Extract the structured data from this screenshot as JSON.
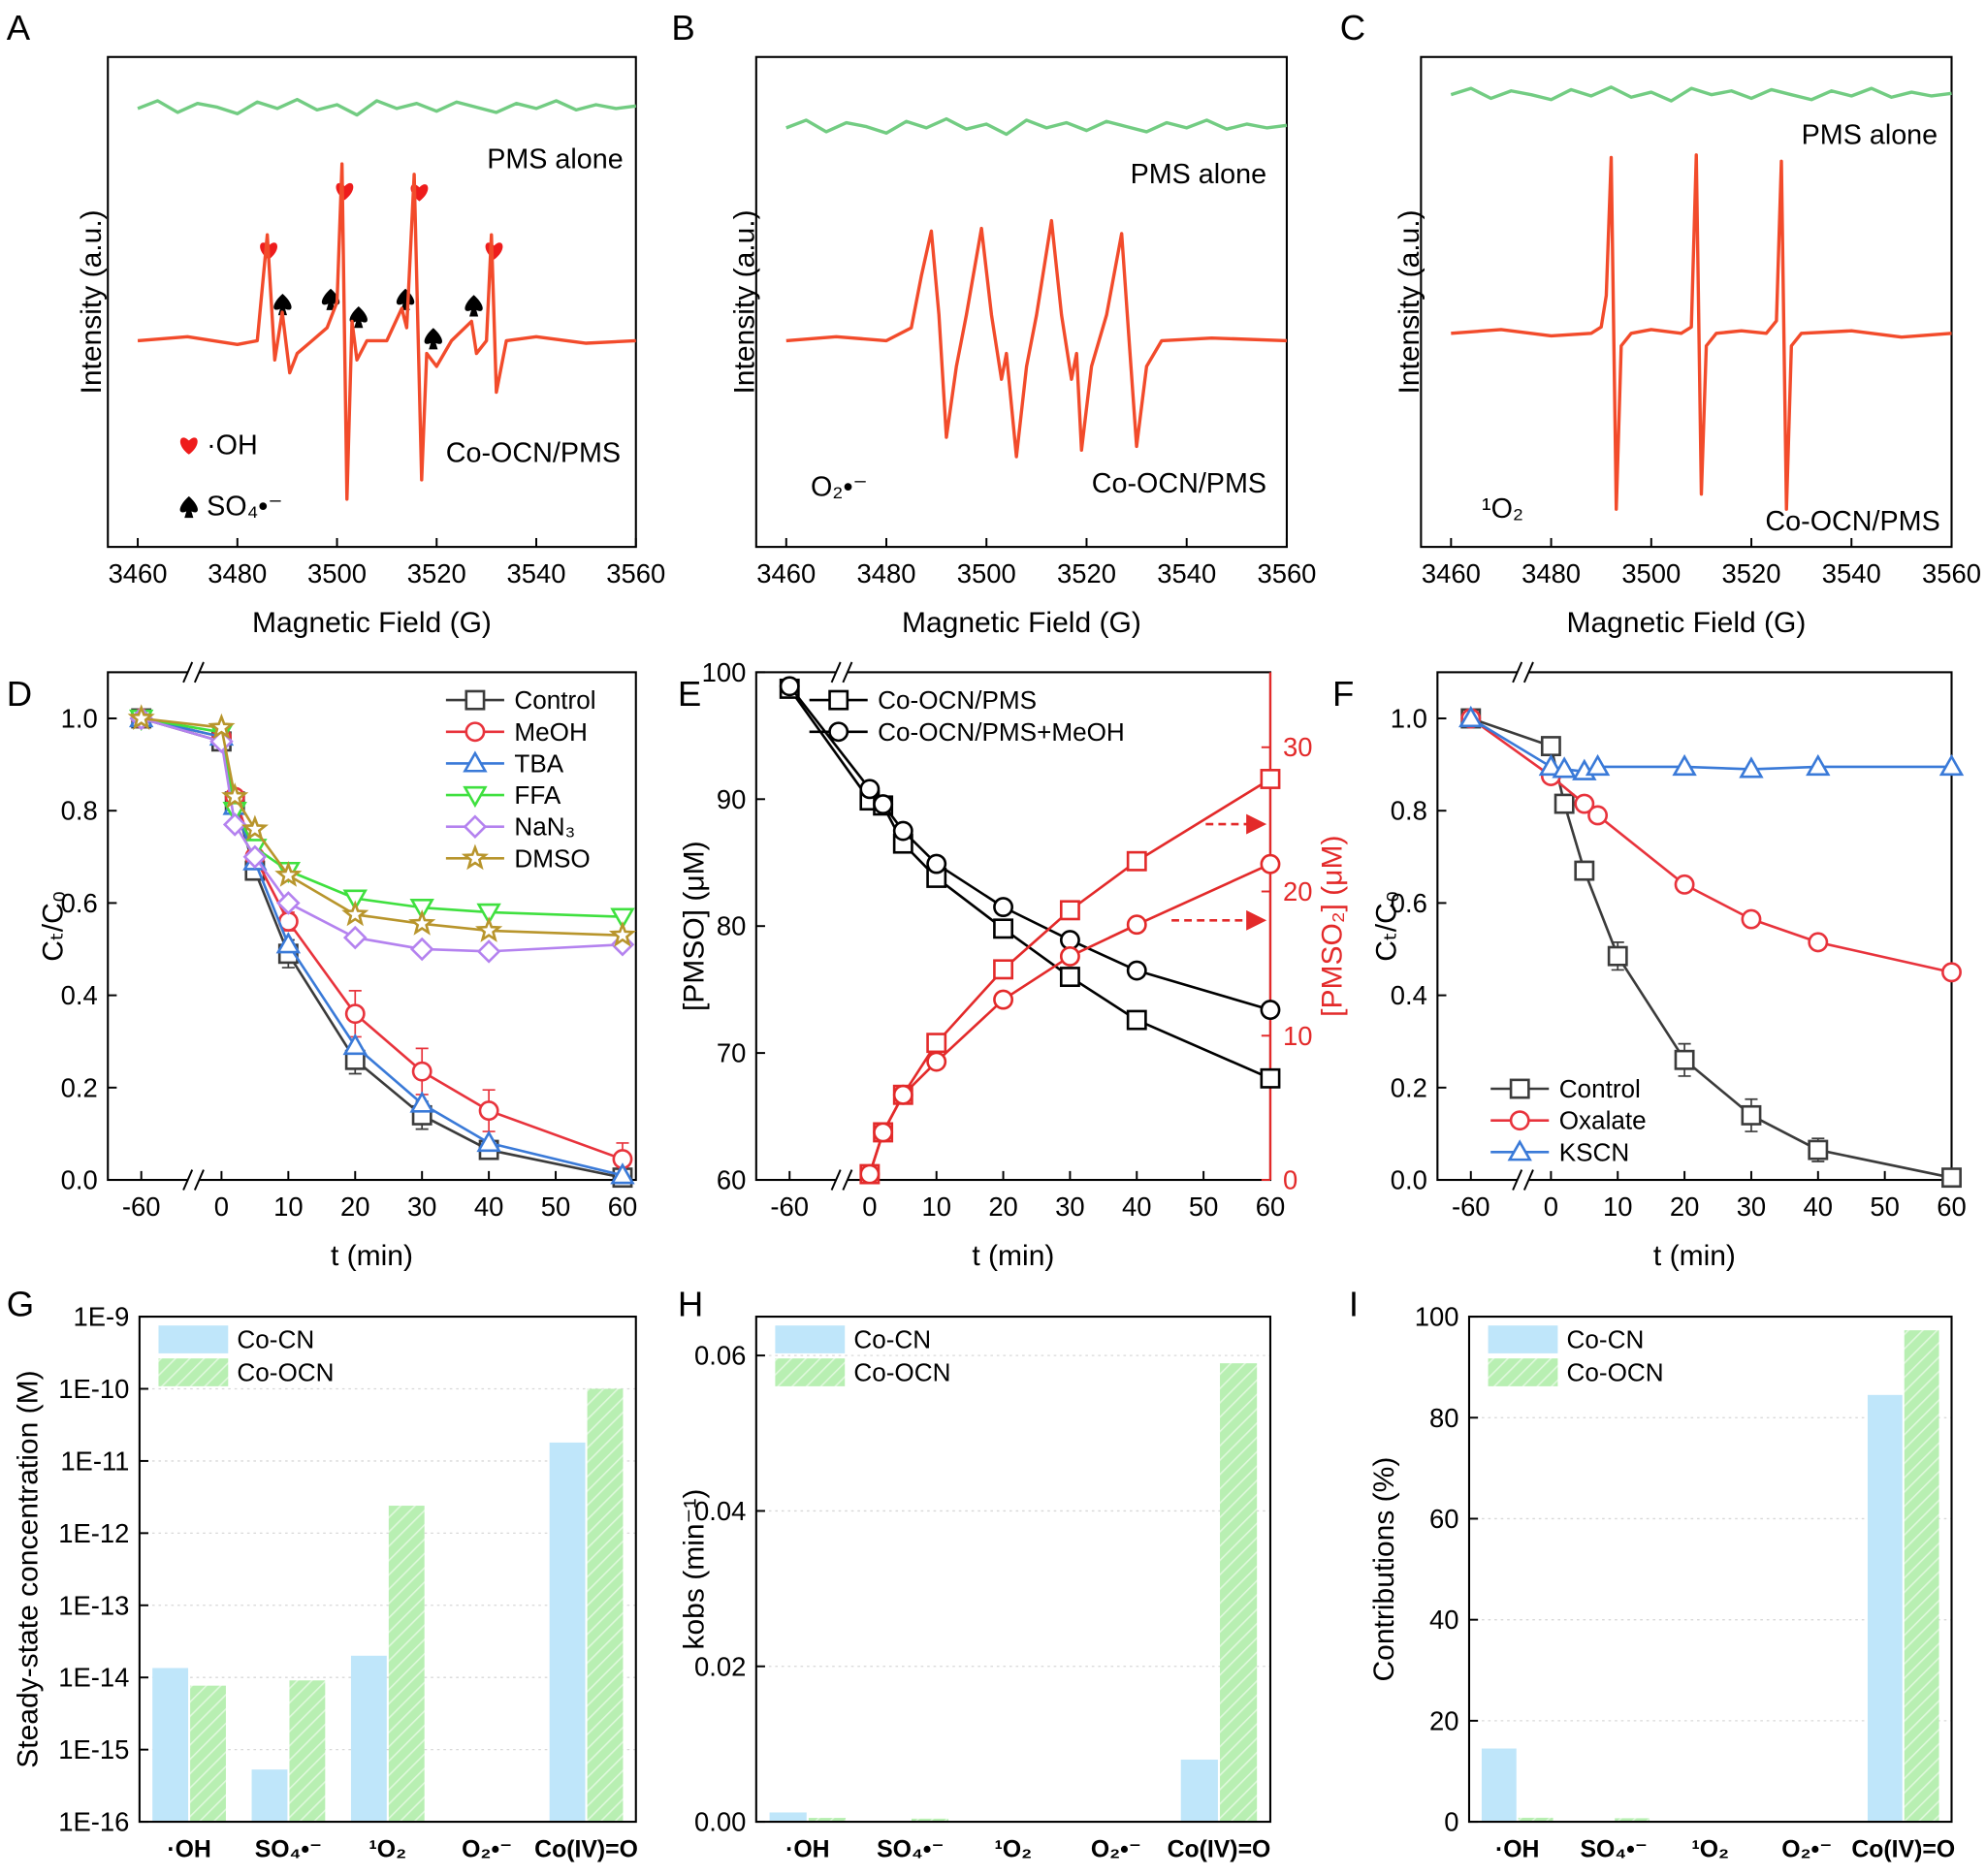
{
  "chart_data": [
    {
      "type": "line",
      "panel_label": "A",
      "xlabel": "Magnetic Field (G)",
      "ylabel": "Intensity (a.u.)",
      "xlim": [
        3454,
        3560
      ],
      "xticks": [
        3460,
        3480,
        3500,
        3520,
        3540,
        3560
      ],
      "ylim": [
        -16,
        22
      ],
      "annotations": [
        "PMS alone",
        "Co-OCN/PMS",
        "·OH",
        "SO₄•⁻"
      ],
      "series": [
        {
          "color": "#72cc82",
          "x": [
            3460,
            3464,
            3468,
            3472,
            3476,
            3480,
            3484,
            3488,
            3492,
            3496,
            3500,
            3504,
            3508,
            3512,
            3516,
            3520,
            3524,
            3528,
            3532,
            3536,
            3540,
            3544,
            3548,
            3552,
            3556,
            3560
          ],
          "values": [
            18.0,
            18.6,
            17.7,
            18.4,
            18.1,
            17.6,
            18.5,
            18.0,
            18.7,
            17.9,
            18.3,
            17.5,
            18.6,
            18.0,
            18.4,
            17.8,
            18.5,
            18.1,
            17.7,
            18.4,
            18.0,
            18.6,
            17.9,
            18.3,
            18.0,
            18.2
          ]
        },
        {
          "color": "#f24b2b",
          "x": [
            3460,
            3470,
            3480,
            3484,
            3486,
            3487.5,
            3489,
            3490.5,
            3492,
            3495,
            3498,
            3500,
            3501,
            3502,
            3503,
            3504,
            3506,
            3510,
            3513,
            3514,
            3515.5,
            3517,
            3518,
            3520,
            3523,
            3527,
            3528,
            3530,
            3531,
            3532,
            3534,
            3540,
            3550,
            3560
          ],
          "values": [
            0,
            0.3,
            -0.3,
            0,
            8.2,
            -1.5,
            2.2,
            -2.5,
            -1,
            0,
            1,
            3,
            13.7,
            -12.3,
            1.5,
            -1.5,
            0,
            0,
            2.5,
            1,
            12.9,
            -10.8,
            -1,
            -2,
            0,
            1.5,
            -1,
            0,
            8.2,
            -4,
            0,
            0.3,
            -0.2,
            0
          ]
        }
      ]
    },
    {
      "type": "line",
      "panel_label": "B",
      "xlabel": "Magnetic Field (G)",
      "ylabel": "Intensity (a.u.)",
      "xlim": [
        3454,
        3560
      ],
      "xticks": [
        3460,
        3480,
        3500,
        3520,
        3540,
        3560
      ],
      "ylim": [
        -16,
        22
      ],
      "annotations": [
        "PMS alone",
        "Co-OCN/PMS",
        "O₂•⁻"
      ],
      "series": [
        {
          "color": "#72cc82",
          "x": [
            3460,
            3464,
            3468,
            3472,
            3476,
            3480,
            3484,
            3488,
            3492,
            3496,
            3500,
            3504,
            3508,
            3512,
            3516,
            3520,
            3524,
            3528,
            3532,
            3536,
            3540,
            3544,
            3548,
            3552,
            3556,
            3560
          ],
          "values": [
            16.5,
            17.1,
            16.2,
            16.9,
            16.6,
            16.1,
            17.0,
            16.5,
            17.2,
            16.4,
            16.8,
            16.0,
            17.1,
            16.5,
            16.9,
            16.3,
            17.0,
            16.6,
            16.2,
            16.9,
            16.5,
            17.1,
            16.4,
            16.8,
            16.5,
            16.7
          ]
        },
        {
          "color": "#f24b2b",
          "x": [
            3460,
            3470,
            3480,
            3485,
            3487,
            3489,
            3490.5,
            3492,
            3494,
            3496,
            3499,
            3501,
            3503,
            3504,
            3506,
            3508,
            3510,
            3513,
            3515,
            3517,
            3518,
            3519,
            3521,
            3524,
            3527,
            3528.5,
            3530,
            3532,
            3535,
            3545,
            3560
          ],
          "values": [
            0,
            0.3,
            0,
            1,
            5,
            8.5,
            2,
            -7.5,
            -2,
            2,
            8.7,
            2,
            -3,
            -1,
            -9,
            -2,
            2,
            9.3,
            2,
            -3,
            -1,
            -8.5,
            -2,
            2,
            8.3,
            0,
            -8.2,
            -2,
            0,
            0.2,
            0
          ]
        }
      ]
    },
    {
      "type": "line",
      "panel_label": "C",
      "xlabel": "Magnetic Field (G)",
      "ylabel": "Intensity (a.u.)",
      "xlim": [
        3454,
        3560
      ],
      "xticks": [
        3460,
        3480,
        3500,
        3520,
        3540,
        3560
      ],
      "ylim": [
        -17,
        22
      ],
      "annotations": [
        "PMS alone",
        "Co-OCN/PMS",
        "¹O₂"
      ],
      "series": [
        {
          "color": "#72cc82",
          "x": [
            3460,
            3464,
            3468,
            3472,
            3476,
            3480,
            3484,
            3488,
            3492,
            3496,
            3500,
            3504,
            3508,
            3512,
            3516,
            3520,
            3524,
            3528,
            3532,
            3536,
            3540,
            3544,
            3548,
            3552,
            3556,
            3560
          ],
          "values": [
            19.0,
            19.5,
            18.7,
            19.3,
            19.0,
            18.6,
            19.4,
            18.9,
            19.6,
            18.8,
            19.2,
            18.5,
            19.5,
            19.0,
            19.3,
            18.7,
            19.4,
            19.0,
            18.6,
            19.3,
            18.9,
            19.5,
            18.8,
            19.2,
            18.9,
            19.1
          ]
        },
        {
          "color": "#f24b2b",
          "x": [
            3460,
            3470,
            3480,
            3488,
            3490,
            3491,
            3492,
            3493,
            3494,
            3496,
            3500,
            3506,
            3508,
            3509,
            3510,
            3511,
            3513,
            3518,
            3523,
            3525,
            3526,
            3527,
            3528,
            3530,
            3540,
            3550,
            3560
          ],
          "values": [
            0,
            0.3,
            -0.2,
            0,
            0.5,
            3,
            14,
            -14,
            -1,
            0,
            0.3,
            0,
            0.5,
            14.2,
            -12.8,
            -1,
            0,
            0.2,
            0,
            1,
            13.7,
            -14,
            -1,
            0,
            0.2,
            -0.3,
            0
          ]
        }
      ]
    },
    {
      "type": "line",
      "panel_label": "D",
      "xlabel": "t (min)",
      "ylabel": "Cₜ/C₀",
      "x": [
        -60,
        0,
        2,
        5,
        10,
        20,
        30,
        40,
        60
      ],
      "xlim": [
        -65,
        62
      ],
      "x_break": [
        -52,
        -4
      ],
      "xticks": [
        -60,
        0,
        10,
        20,
        30,
        40,
        50,
        60
      ],
      "ylim": [
        0,
        1.1
      ],
      "yticks": [
        {
          "value": 0,
          "label": "0.0"
        },
        0.2,
        0.4,
        0.6,
        0.8,
        {
          "value": 1,
          "label": "1.0"
        }
      ],
      "legend": "upper right",
      "series": [
        {
          "name": "Control",
          "marker": "square",
          "color": "#3b3b3b",
          "values": [
            1.0,
            0.95,
            0.82,
            0.67,
            0.49,
            0.26,
            0.14,
            0.065,
            0.005
          ],
          "errors": [
            0,
            0,
            0,
            0.015,
            0.03,
            0.03,
            0.03,
            0.02,
            0
          ]
        },
        {
          "name": "MeOH",
          "marker": "circle",
          "color": "#e8333c",
          "values": [
            1.0,
            0.96,
            0.83,
            0.7,
            0.56,
            0.36,
            0.235,
            0.15,
            0.045
          ],
          "errors": [
            0,
            0,
            0,
            0,
            0.02,
            0.05,
            0.05,
            0.045,
            0.035
          ]
        },
        {
          "name": "TBA",
          "marker": "triangle",
          "color": "#3a7ad8",
          "values": [
            1.0,
            0.96,
            0.81,
            0.69,
            0.51,
            0.29,
            0.165,
            0.08,
            0.01
          ]
        },
        {
          "name": "FFA",
          "marker": "triangle-down",
          "color": "#3fe03f",
          "values": [
            1.0,
            0.97,
            0.8,
            0.72,
            0.67,
            0.61,
            0.59,
            0.58,
            0.57
          ]
        },
        {
          "name": "NaN₃",
          "marker": "diamond",
          "color": "#b482ef",
          "values": [
            1.0,
            0.95,
            0.77,
            0.7,
            0.6,
            0.525,
            0.5,
            0.495,
            0.51
          ]
        },
        {
          "name": "DMSO",
          "marker": "star",
          "color": "#b8952c",
          "values": [
            1.0,
            0.98,
            0.83,
            0.76,
            0.66,
            0.575,
            0.555,
            0.54,
            0.53
          ]
        }
      ]
    },
    {
      "type": "line",
      "panel_label": "E",
      "xlabel": "t (min)",
      "ylabel": "[PMSO] (μM)",
      "y2label": "[PMSO₂] (μM)",
      "xlim": [
        -65,
        60
      ],
      "x_break": [
        -52,
        -4
      ],
      "xticks": [
        -60,
        0,
        10,
        20,
        30,
        40,
        50,
        60
      ],
      "ylim": [
        60,
        100
      ],
      "yticks": [
        60,
        70,
        80,
        90,
        100
      ],
      "y2lim": [
        0,
        35.2
      ],
      "y2ticks": [
        0,
        10,
        20,
        30
      ],
      "y2color": "#e32a2a",
      "legend": "upper left",
      "series": [
        {
          "name": "Co-OCN/PMS",
          "marker": "square",
          "color": "#000000",
          "x": [
            -60,
            0,
            2,
            5,
            10,
            20,
            30,
            40,
            60
          ],
          "values": [
            98.7,
            89.9,
            89.5,
            86.5,
            83.8,
            79.8,
            76.0,
            72.6,
            68.0
          ]
        },
        {
          "name": "Co-OCN/PMS+MeOH",
          "marker": "circle",
          "color": "#000000",
          "x": [
            -60,
            0,
            2,
            5,
            10,
            20,
            30,
            40,
            60
          ],
          "values": [
            98.9,
            90.8,
            89.6,
            87.5,
            84.9,
            81.5,
            78.9,
            76.5,
            73.4
          ]
        },
        {
          "axis": "y2",
          "marker": "square",
          "color": "#e32a2a",
          "x": [
            0,
            2,
            5,
            10,
            20,
            30,
            40,
            60
          ],
          "values": [
            0.4,
            3.3,
            5.9,
            9.5,
            14.6,
            18.7,
            22.1,
            27.8
          ]
        },
        {
          "axis": "y2",
          "marker": "circle",
          "color": "#e32a2a",
          "x": [
            0,
            2,
            5,
            10,
            20,
            30,
            40,
            60
          ],
          "values": [
            0.4,
            3.3,
            5.9,
            8.2,
            12.5,
            15.5,
            17.7,
            21.9
          ]
        }
      ]
    },
    {
      "type": "line",
      "panel_label": "F",
      "xlabel": "t (min)",
      "ylabel": "Cₜ/C₀",
      "xlim": [
        -65,
        60
      ],
      "x_break": [
        -52,
        -4
      ],
      "xticks": [
        -60,
        0,
        10,
        20,
        30,
        40,
        50,
        60
      ],
      "ylim": [
        0,
        1.1
      ],
      "yticks": [
        {
          "value": 0,
          "label": "0.0"
        },
        0.2,
        0.4,
        0.6,
        0.8,
        {
          "value": 1,
          "label": "1.0"
        }
      ],
      "legend": "lower left",
      "series": [
        {
          "name": "Control",
          "marker": "square",
          "color": "#3b3b3b",
          "x": [
            -60,
            0,
            2,
            5,
            10,
            20,
            30,
            40,
            60
          ],
          "values": [
            1.0,
            0.94,
            0.815,
            0.67,
            0.485,
            0.26,
            0.14,
            0.065,
            0.005
          ],
          "errors": [
            0,
            0,
            0,
            0.02,
            0.03,
            0.035,
            0.035,
            0.025,
            0
          ]
        },
        {
          "name": "Oxalate",
          "marker": "circle",
          "color": "#e8333c",
          "x": [
            -60,
            0,
            5,
            7,
            20,
            30,
            40,
            60
          ],
          "values": [
            1.0,
            0.875,
            0.815,
            0.79,
            0.64,
            0.565,
            0.515,
            0.45
          ]
        },
        {
          "name": "KSCN",
          "marker": "triangle",
          "color": "#3a7ad8",
          "x": [
            -60,
            0,
            2,
            5,
            7,
            20,
            30,
            40,
            60
          ],
          "values": [
            1.0,
            0.895,
            0.89,
            0.885,
            0.895,
            0.895,
            0.89,
            0.895,
            0.895
          ]
        }
      ]
    },
    {
      "type": "bar",
      "panel_label": "G",
      "ylabel": "Steady-state concentration (M)",
      "log": true,
      "grid": true,
      "legend": "upper left",
      "categories": [
        "·OH",
        "SO₄•⁻",
        "¹O₂",
        "O₂•⁻",
        "Co(IV)=O"
      ],
      "ylim": [
        1e-16,
        1e-09
      ],
      "yticks": [
        {
          "value": 1e-16,
          "label": "1E-16"
        },
        {
          "value": 1e-15,
          "label": "1E-15"
        },
        {
          "value": 1e-14,
          "label": "1E-14"
        },
        {
          "value": 1e-13,
          "label": "1E-13"
        },
        {
          "value": 1e-12,
          "label": "1E-12"
        },
        {
          "value": 1e-11,
          "label": "1E-11"
        },
        {
          "value": 1e-10,
          "label": "1E-10"
        },
        {
          "value": 1e-09,
          "label": "1E-9"
        }
      ],
      "series": [
        {
          "name": "Co-CN",
          "color": "#bfe6fa",
          "values": [
            1.35e-14,
            5.3e-16,
            2e-14,
            null,
            1.8e-11
          ]
        },
        {
          "name": "Co-OCN",
          "color": "#b8efb2",
          "hatch": true,
          "values": [
            7.7e-15,
            9.1e-15,
            2.4e-12,
            null,
            1e-10
          ]
        }
      ]
    },
    {
      "type": "bar",
      "panel_label": "H",
      "ylabel": "kobs (min⁻¹)",
      "grid": true,
      "legend": "upper left",
      "categories": [
        "·OH",
        "SO₄•⁻",
        "¹O₂",
        "O₂•⁻",
        "Co(IV)=O"
      ],
      "ylim": [
        0,
        0.065
      ],
      "yticks": [
        {
          "value": 0,
          "label": "0.00"
        },
        0.02,
        0.04,
        0.06
      ],
      "series": [
        {
          "name": "Co-CN",
          "color": "#bfe6fa",
          "values": [
            0.0012,
            0,
            0,
            0,
            0.008
          ]
        },
        {
          "name": "Co-OCN",
          "color": "#b8efb2",
          "hatch": true,
          "values": [
            0.0005,
            0.0004,
            0,
            0,
            0.059
          ]
        }
      ]
    },
    {
      "type": "bar",
      "panel_label": "I",
      "ylabel": "Contributions (%)",
      "grid": true,
      "legend": "upper left",
      "categories": [
        "·OH",
        "SO₄•⁻",
        "¹O₂",
        "O₂•⁻",
        "Co(IV)=O"
      ],
      "ylim": [
        0,
        100
      ],
      "yticks": [
        0,
        20,
        40,
        60,
        80,
        100
      ],
      "series": [
        {
          "name": "Co-CN",
          "color": "#bfe6fa",
          "values": [
            14.5,
            0,
            0,
            0,
            84.5
          ]
        },
        {
          "name": "Co-OCN",
          "color": "#b8efb2",
          "hatch": true,
          "values": [
            0.8,
            0.7,
            0,
            0,
            97.3
          ]
        }
      ]
    }
  ]
}
